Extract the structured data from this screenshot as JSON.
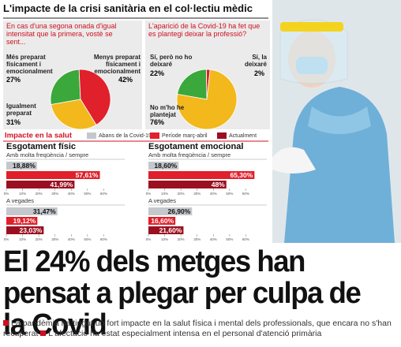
{
  "header": {
    "title": "L'impacte de la crisi sanitària en el col·lectiu mèdic"
  },
  "pies": [
    {
      "question": "En cas d'una segona onada d'igual intensitat que la primera, vostè se sent...",
      "slices": [
        {
          "label": "Més preparat físicament i emocionalment",
          "value": 27,
          "value_label": "27%",
          "color": "#3aa83a"
        },
        {
          "label": "Menys preparat físicament i emocionalment",
          "value": 42,
          "value_label": "42%",
          "color": "#e0202a"
        },
        {
          "label": "Igualment preparat",
          "value": 31,
          "value_label": "31%",
          "color": "#f2b81c"
        }
      ]
    },
    {
      "question": "L'aparició de la Covid-19 ha fet que es plantegi deixar la professió?",
      "slices": [
        {
          "label": "Sí, però no ho deixaré",
          "value": 22,
          "value_label": "22%",
          "color": "#3aa83a"
        },
        {
          "label": "Sí, la deixaré",
          "value": 2,
          "value_label": "2%",
          "color": "#e0202a"
        },
        {
          "label": "No m'ho he plantejat",
          "value": 76,
          "value_label": "76%",
          "color": "#f2b81c"
        }
      ]
    }
  ],
  "legend": {
    "title": "Impacte en la salut",
    "items": [
      {
        "name": "Abans de la Covid-19",
        "color": "#c4c8cc"
      },
      {
        "name": "Període març-abril",
        "color": "#e0202a"
      },
      {
        "name": "Actualment",
        "color": "#9b1020"
      }
    ]
  },
  "bar_axis": {
    "xlim": [
      0,
      70
    ],
    "xticks": [
      {
        "value": 0,
        "label": "0%"
      },
      {
        "value": 10,
        "label": "10%"
      },
      {
        "value": 20,
        "label": "20%"
      },
      {
        "value": 30,
        "label": "30%"
      },
      {
        "value": 40,
        "label": "40%"
      },
      {
        "value": 50,
        "label": "50%"
      },
      {
        "value": 60,
        "label": "60%"
      }
    ]
  },
  "bar_sections": [
    {
      "title": "Esgotament físic",
      "groups": [
        {
          "label": "Amb molta freqüència / sempre",
          "values": [
            18.88,
            57.61,
            41.99
          ],
          "value_labels": [
            "18,88%",
            "57,61%",
            "41,99%"
          ]
        },
        {
          "label": "A vegades",
          "values": [
            31.47,
            19.12,
            23.03
          ],
          "value_labels": [
            "31,47%",
            "19,12%",
            "23,03%"
          ]
        }
      ]
    },
    {
      "title": "Esgotament emocional",
      "groups": [
        {
          "label": "Amb molta freqüència / sempre",
          "values": [
            18.6,
            65.3,
            48
          ],
          "value_labels": [
            "18,60%",
            "65,30%",
            "48%"
          ]
        },
        {
          "label": "A vegades",
          "values": [
            26.9,
            16.6,
            21.6
          ],
          "value_labels": [
            "26,90%",
            "16,60%",
            "21,60%"
          ]
        }
      ]
    }
  ],
  "headline": "El 24% dels metges han pensat a plegar per culpa de la Covid",
  "bullets": [
    "La pandèmia ha tingut un fort impacte en la salut física i mental dels professionals, que encara no s'han recuperat",
    "L'afectació ha estat especialment intensa en el personal d'atenció primària"
  ]
}
